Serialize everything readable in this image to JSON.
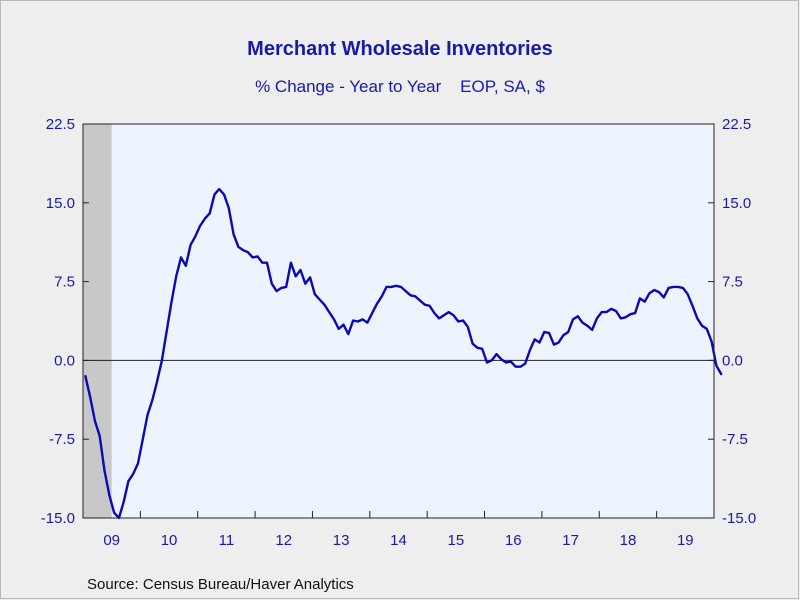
{
  "header": {
    "title": "Merchant Wholesale Inventories",
    "subtitle": "% Change - Year to Year    EOP, SA, $"
  },
  "footer": {
    "source": "Source:  Census Bureau/Haver Analytics"
  },
  "colors": {
    "line": "#0a0ab4",
    "plot_bg": "#eef4ff",
    "recession": "#c8c8c8",
    "text": "#1a1aa6"
  },
  "chart_data": {
    "type": "line",
    "title": "Merchant Wholesale Inventories",
    "subtitle": "% Change - Year to Year    EOP, SA, $",
    "y_ticks": [
      "22.5",
      "15.0",
      "7.5",
      "0.0",
      "-7.5",
      "-15.0"
    ],
    "y_tick_values": [
      22.5,
      15.0,
      7.5,
      0.0,
      -7.5,
      -15.0
    ],
    "ylim": [
      -15.0,
      22.5
    ],
    "x_tick_labels": [
      "09",
      "10",
      "11",
      "12",
      "13",
      "14",
      "15",
      "16",
      "17",
      "18",
      "19"
    ],
    "x_range": [
      "2009-01",
      "2019-12"
    ],
    "recession_shade": [
      "2009-01",
      "2009-06"
    ],
    "zero_line": true,
    "grid": false,
    "series": [
      {
        "start": "2009-01",
        "frequency": "monthly",
        "values": [
          -1.5,
          -3.5,
          -5.8,
          -7.2,
          -10.5,
          -12.8,
          -14.5,
          -15.0,
          -13.5,
          -11.5,
          -10.8,
          -9.8,
          -7.5,
          -5.2,
          -3.8,
          -2.0,
          0.0,
          2.8,
          5.5,
          8.0,
          9.8,
          9.0,
          11.0,
          11.8,
          12.8,
          13.5,
          14.0,
          15.8,
          16.3,
          15.8,
          14.5,
          12.0,
          10.8,
          10.5,
          10.3,
          9.8,
          9.9,
          9.3,
          9.3,
          7.3,
          6.6,
          6.9,
          7.0,
          9.3,
          8.0,
          8.6,
          7.3,
          7.9,
          6.3,
          5.8,
          5.3,
          4.6,
          3.9,
          3.0,
          3.4,
          2.5,
          3.8,
          3.7,
          3.9,
          3.6,
          4.5,
          5.4,
          6.1,
          7.0,
          7.0,
          7.1,
          7.0,
          6.6,
          6.2,
          6.1,
          5.7,
          5.3,
          5.2,
          4.5,
          4.0,
          4.3,
          4.6,
          4.3,
          3.7,
          3.8,
          3.2,
          1.6,
          1.2,
          1.1,
          -0.2,
          0.0,
          0.6,
          0.1,
          -0.2,
          -0.1,
          -0.6,
          -0.6,
          -0.3,
          1.0,
          2.0,
          1.7,
          2.7,
          2.6,
          1.5,
          1.7,
          2.4,
          2.7,
          3.9,
          4.2,
          3.6,
          3.3,
          2.9,
          4.0,
          4.6,
          4.6,
          4.9,
          4.7,
          4.0,
          4.1,
          4.4,
          4.5,
          5.9,
          5.6,
          6.4,
          6.7,
          6.5,
          6.0,
          6.9,
          7.0,
          7.0,
          6.9,
          6.3,
          5.2,
          4.0,
          3.3,
          3.0,
          1.8,
          -0.5,
          -1.3
        ]
      }
    ]
  }
}
